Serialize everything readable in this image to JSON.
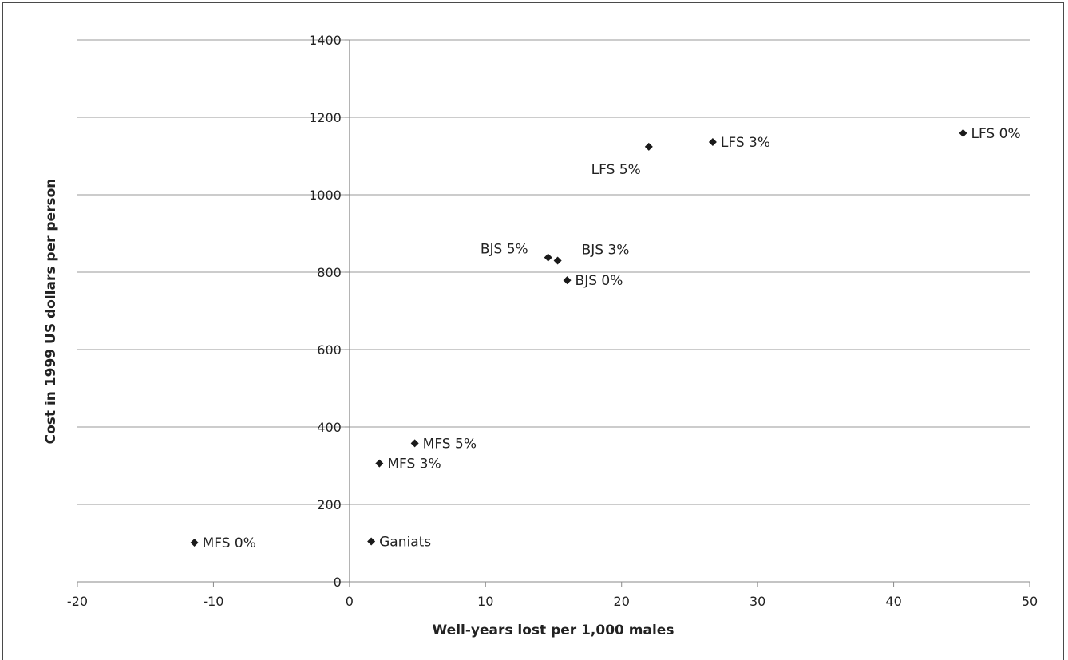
{
  "chart_data": {
    "type": "scatter",
    "title": "",
    "xlabel": "Well-years lost per 1,000 males",
    "ylabel": "Cost in 1999 US dollars per person",
    "xlim": [
      -20,
      50
    ],
    "ylim": [
      0,
      1400
    ],
    "xticks": [
      -20,
      -10,
      0,
      10,
      20,
      30,
      40,
      50
    ],
    "yticks": [
      0,
      200,
      400,
      600,
      800,
      1000,
      1200,
      1400
    ],
    "grid": "horizontal",
    "marker": "diamond",
    "marker_color": "#1a1a1a",
    "points": [
      {
        "label": "LFS 0%",
        "x": 45.1,
        "y": 1159,
        "label_pos": "right"
      },
      {
        "label": "LFS 3%",
        "x": 26.7,
        "y": 1136,
        "label_pos": "right"
      },
      {
        "label": "LFS 5%",
        "x": 22.0,
        "y": 1124,
        "label_pos": "below-left"
      },
      {
        "label": "BJS 5%",
        "x": 14.6,
        "y": 838,
        "label_pos": "above-left"
      },
      {
        "label": "BJS 3%",
        "x": 15.3,
        "y": 830,
        "label_pos": "above-right"
      },
      {
        "label": "BJS 0%",
        "x": 16.0,
        "y": 779,
        "label_pos": "right"
      },
      {
        "label": "MFS 5%",
        "x": 4.8,
        "y": 358,
        "label_pos": "right"
      },
      {
        "label": "MFS 3%",
        "x": 2.2,
        "y": 306,
        "label_pos": "right"
      },
      {
        "label": "Ganiats",
        "x": 1.6,
        "y": 104,
        "label_pos": "right"
      },
      {
        "label": "MFS 0%",
        "x": -11.4,
        "y": 101,
        "label_pos": "right"
      }
    ]
  }
}
